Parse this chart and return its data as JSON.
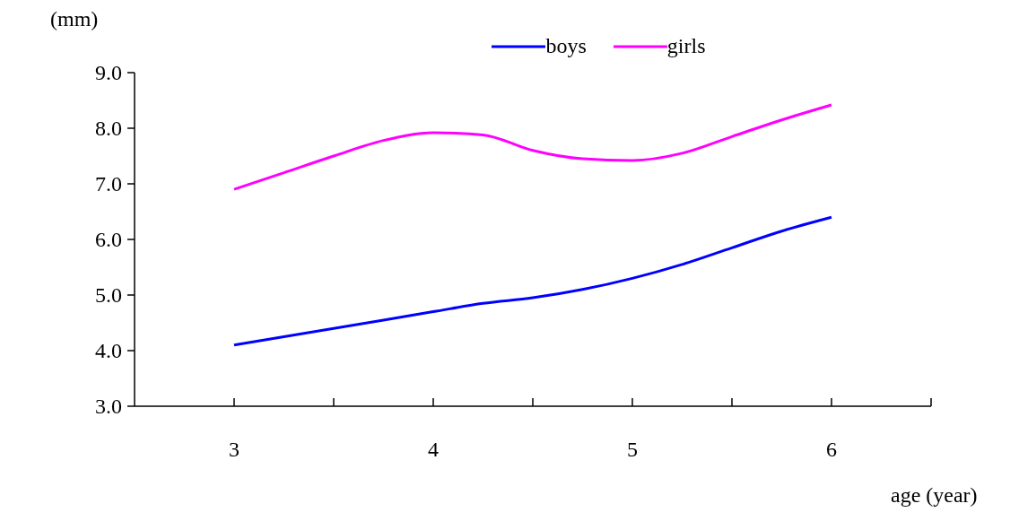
{
  "chart_data": {
    "type": "line",
    "xlabel": "age (year)",
    "ylabel": "(mm)",
    "x": [
      3,
      3.25,
      3.5,
      3.75,
      4,
      4.25,
      4.5,
      4.75,
      5,
      5.25,
      5.5,
      5.75,
      6
    ],
    "series": [
      {
        "name": "boys",
        "color": "#0000ff",
        "values": [
          4.1,
          4.25,
          4.4,
          4.55,
          4.7,
          4.85,
          4.95,
          5.1,
          5.3,
          5.55,
          5.85,
          6.15,
          6.4
        ]
      },
      {
        "name": "girls",
        "color": "#ff00ff",
        "values": [
          6.9,
          7.2,
          7.5,
          7.78,
          7.92,
          7.88,
          7.6,
          7.45,
          7.42,
          7.55,
          7.85,
          8.15,
          8.42
        ]
      }
    ],
    "xlim": [
      2.5,
      6.5
    ],
    "xticks": [
      3,
      {
        "value": 3.5,
        "label": null
      },
      4,
      {
        "value": 4.5,
        "label": null
      },
      5,
      {
        "value": 5.5,
        "label": null
      },
      6,
      {
        "value": 6.5,
        "label": null
      }
    ],
    "ylim": [
      3,
      9
    ],
    "yticks": [
      {
        "value": 3,
        "label": "3.0"
      },
      {
        "value": 4,
        "label": "4.0"
      },
      {
        "value": 5,
        "label": "5.0"
      },
      {
        "value": 6,
        "label": "6.0"
      },
      {
        "value": 7,
        "label": "7.0"
      },
      {
        "value": 8,
        "label": "8.0"
      },
      {
        "value": 9,
        "label": "9.0"
      }
    ],
    "grid": false,
    "legend": "top",
    "marker": "none",
    "line_style": "solid"
  }
}
